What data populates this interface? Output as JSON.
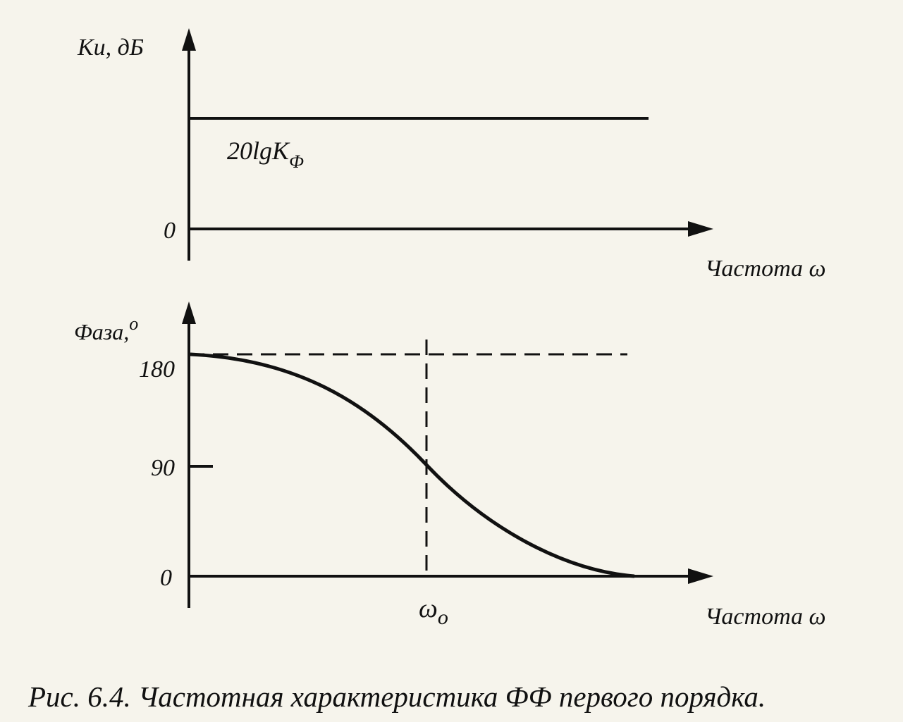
{
  "top_plot": {
    "y_label": "Кu,  дБ",
    "level_label": "20lgK",
    "level_subscript": "Ф",
    "zero_label": "0",
    "x_label": "Частота ω"
  },
  "bottom_plot": {
    "y_label": "Фаза,",
    "y_label_superscript": "о",
    "ticks": [
      "180",
      "90",
      "0"
    ],
    "x_marker": "ω",
    "x_marker_subscript": "о",
    "x_label": "Частота ω"
  },
  "caption": "Рис. 6.4. Частотная характеристика ФФ первого порядка."
}
